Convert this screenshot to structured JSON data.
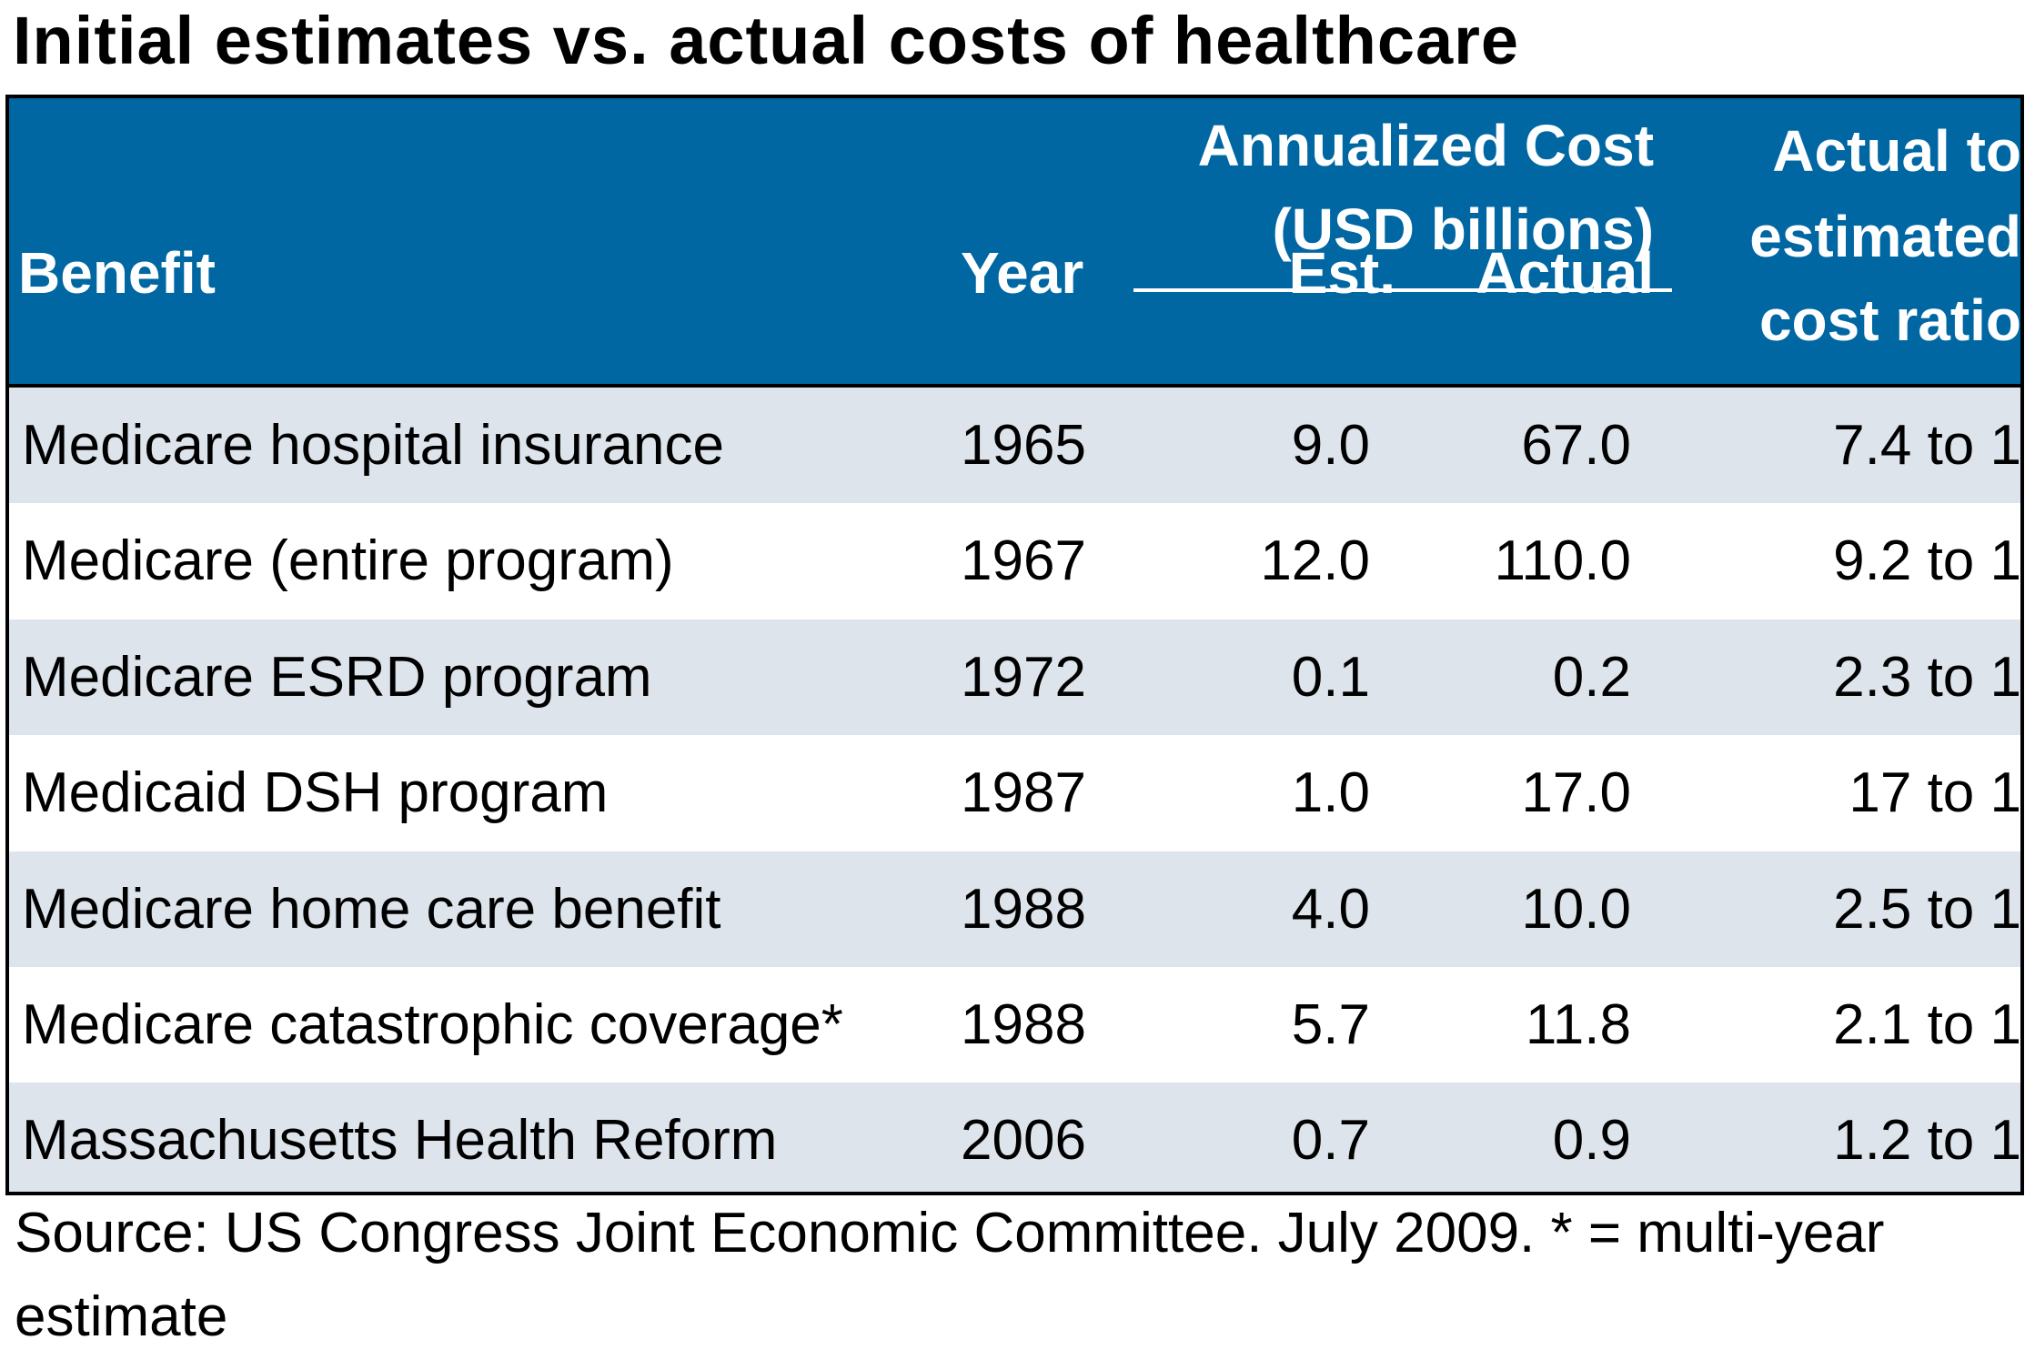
{
  "title": "Initial estimates vs. actual costs of healthcare",
  "colors": {
    "header_bg": "#0067a3",
    "header_text": "#ffffff",
    "row_shade": "#dde4ec"
  },
  "chart_data": {
    "type": "table",
    "title": "Initial estimates vs. actual costs of healthcare",
    "group_header": {
      "line1": "Annualized Cost",
      "line2": "(USD billions)"
    },
    "ratio_header": {
      "line1": "Actual to",
      "line2": "estimated",
      "line3": "cost ratio"
    },
    "columns": [
      "Benefit",
      "Year",
      "Est.",
      "Actual"
    ],
    "rows": [
      {
        "benefit": "Medicare hospital insurance",
        "year": "1965",
        "est": "9.0",
        "actual": "67.0",
        "ratio": "7.4 to 1"
      },
      {
        "benefit": "Medicare (entire program)",
        "year": "1967",
        "est": "12.0",
        "actual": "110.0",
        "ratio": "9.2 to 1"
      },
      {
        "benefit": "Medicare ESRD program",
        "year": "1972",
        "est": "0.1",
        "actual": "0.2",
        "ratio": "2.3 to 1"
      },
      {
        "benefit": "Medicaid DSH program",
        "year": "1987",
        "est": "1.0",
        "actual": "17.0",
        "ratio": "17 to 1"
      },
      {
        "benefit": "Medicare home care benefit",
        "year": "1988",
        "est": "4.0",
        "actual": "10.0",
        "ratio": "2.5 to 1"
      },
      {
        "benefit": "Medicare catastrophic coverage*",
        "year": "1988",
        "est": "5.7",
        "actual": "11.8",
        "ratio": "2.1 to 1"
      },
      {
        "benefit": "Massachusetts Health Reform",
        "year": "2006",
        "est": "0.7",
        "actual": "0.9",
        "ratio": "1.2 to 1"
      }
    ],
    "source": "Source: US Congress Joint Economic Committee. July 2009. * = multi-year estimate"
  }
}
